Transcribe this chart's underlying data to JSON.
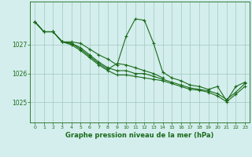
{
  "bg_color": "#d4eeed",
  "grid_color": "#a0c8c0",
  "line_color": "#1a6b1a",
  "xlabel": "Graphe pression niveau de la mer (hPa)",
  "xlim": [
    -0.5,
    23.5
  ],
  "ylim": [
    1024.3,
    1028.5
  ],
  "yticks": [
    1025,
    1026,
    1027
  ],
  "xticks": [
    0,
    1,
    2,
    3,
    4,
    5,
    6,
    7,
    8,
    9,
    10,
    11,
    12,
    13,
    14,
    15,
    16,
    17,
    18,
    19,
    20,
    21,
    22,
    23
  ],
  "series": [
    {
      "x": [
        0,
        1,
        2,
        3,
        4,
        5,
        6,
        7,
        8,
        9,
        10,
        11,
        12,
        13,
        14,
        15,
        16,
        17,
        18,
        19,
        20,
        21,
        22,
        23
      ],
      "y": [
        1027.8,
        1027.45,
        1027.45,
        1027.1,
        1027.1,
        1027.05,
        1026.85,
        1026.65,
        1026.5,
        1026.3,
        1027.3,
        1027.9,
        1027.85,
        1027.05,
        1026.05,
        1025.85,
        1025.75,
        1025.6,
        1025.55,
        1025.45,
        1025.55,
        1025.05,
        1025.55,
        1025.7
      ]
    },
    {
      "x": [
        0,
        1,
        2,
        3,
        4,
        5,
        6,
        7,
        8,
        9,
        10,
        11,
        12,
        13,
        14,
        15,
        16,
        17,
        18,
        19,
        20,
        21,
        22,
        23
      ],
      "y": [
        1027.8,
        1027.45,
        1027.45,
        1027.1,
        1027.05,
        1026.9,
        1026.65,
        1026.4,
        1026.2,
        1026.1,
        1026.1,
        1026.0,
        1026.0,
        1025.9,
        1025.8,
        1025.7,
        1025.6,
        1025.5,
        1025.45,
        1025.4,
        1025.3,
        1025.1,
        1025.35,
        1025.65
      ]
    },
    {
      "x": [
        0,
        1,
        2,
        3,
        4,
        5,
        6,
        7,
        8,
        9,
        10,
        11,
        12,
        13,
        14,
        15,
        16,
        17,
        18,
        19,
        20,
        21,
        22,
        23
      ],
      "y": [
        1027.8,
        1027.45,
        1027.45,
        1027.1,
        1027.0,
        1026.8,
        1026.55,
        1026.3,
        1026.1,
        1025.95,
        1025.95,
        1025.9,
        1025.85,
        1025.8,
        1025.75,
        1025.65,
        1025.55,
        1025.45,
        1025.42,
        1025.35,
        1025.22,
        1025.02,
        1025.28,
        1025.55
      ]
    },
    {
      "x": [
        0,
        1,
        2,
        3,
        4,
        5,
        6,
        7,
        8,
        9,
        10,
        11,
        12,
        13,
        14
      ],
      "y": [
        1027.8,
        1027.45,
        1027.45,
        1027.1,
        1027.05,
        1026.85,
        1026.6,
        1026.35,
        1026.15,
        1026.35,
        1026.3,
        1026.2,
        1026.1,
        1026.0,
        1025.85
      ]
    }
  ]
}
